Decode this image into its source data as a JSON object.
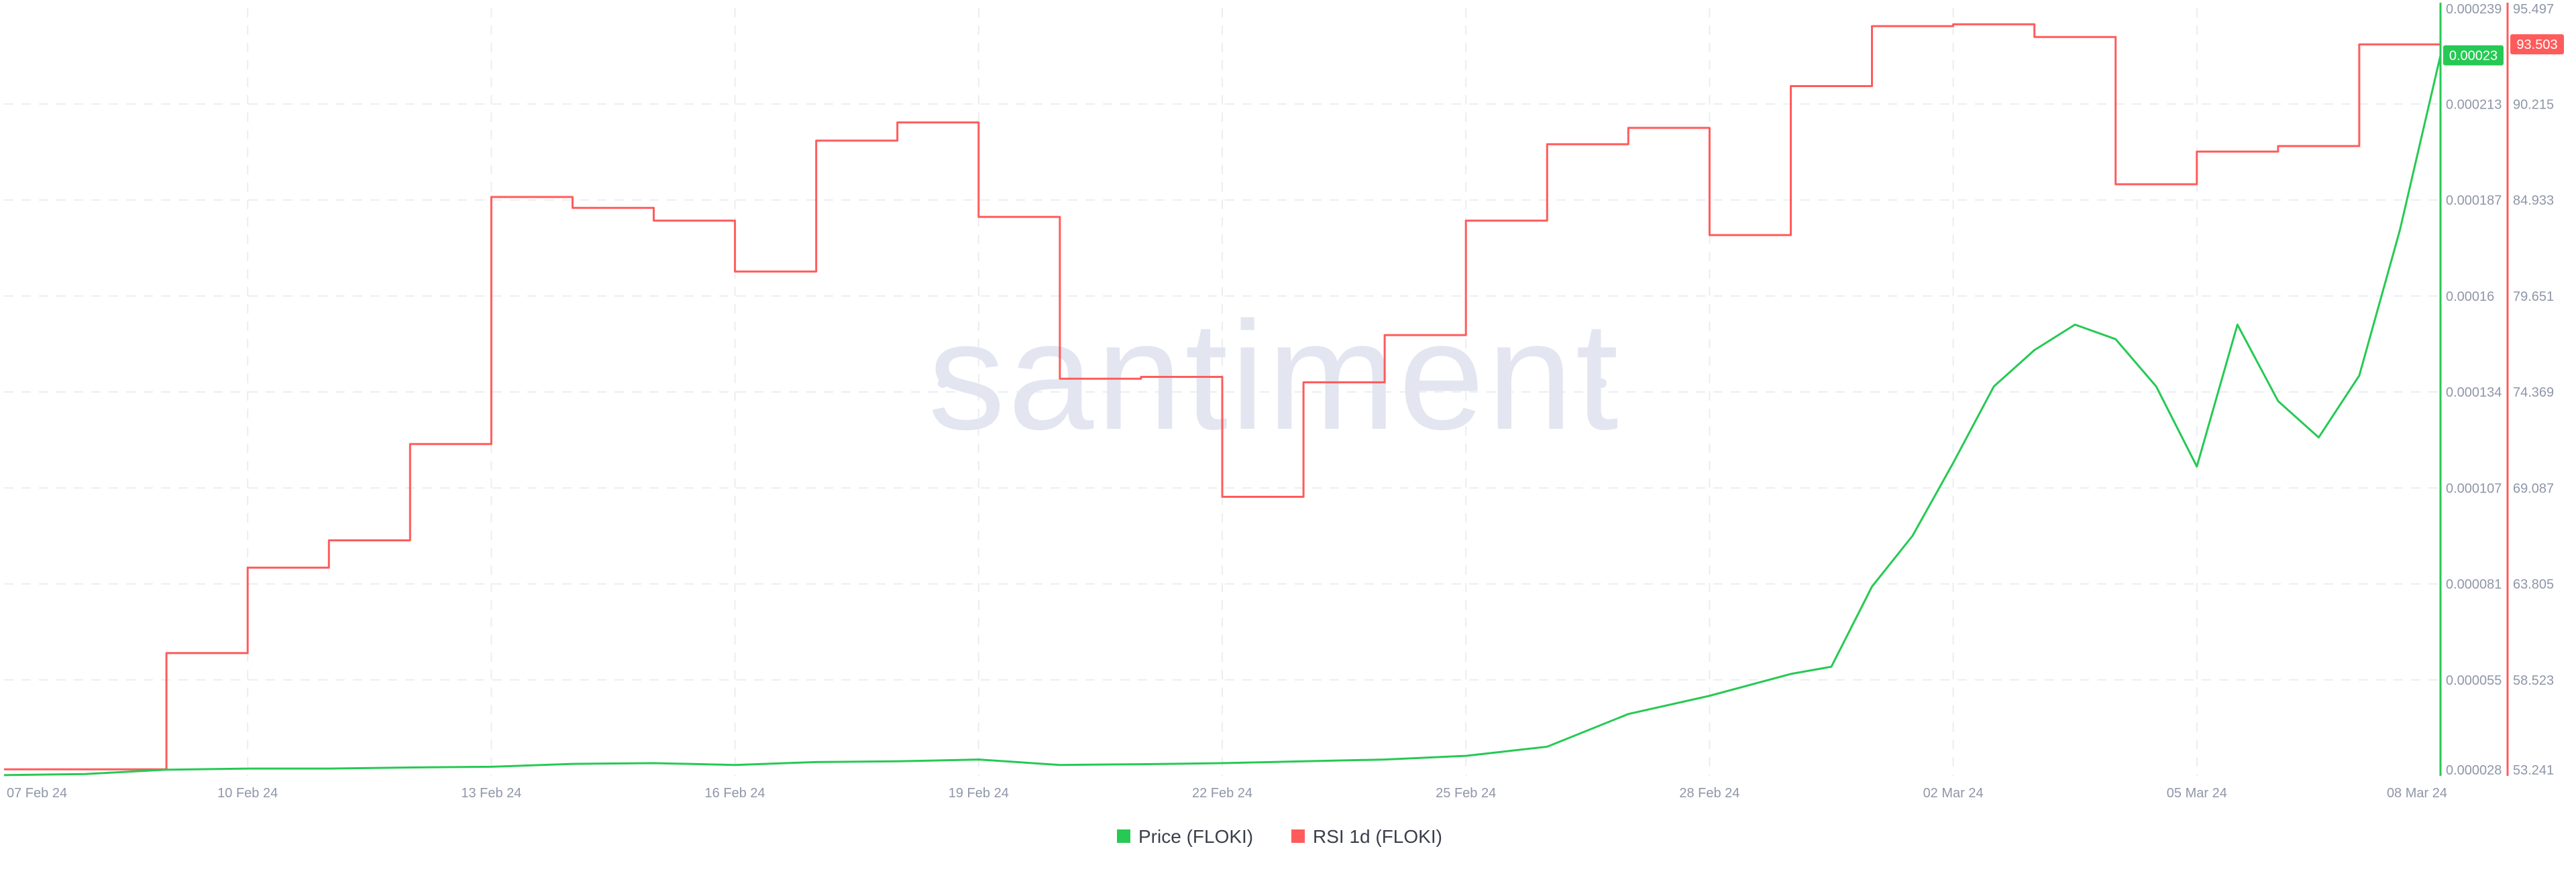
{
  "watermark": "santiment",
  "colors": {
    "price": "#26c953",
    "rsi": "#ff5b5b",
    "grid": "#ebedf2",
    "tick_text": "#8f96a8",
    "legend_text": "#3a3f4b"
  },
  "chart_data": {
    "type": "line",
    "title": "",
    "x_ticks": [
      "07 Feb 24",
      "10 Feb 24",
      "13 Feb 24",
      "16 Feb 24",
      "19 Feb 24",
      "22 Feb 24",
      "25 Feb 24",
      "28 Feb 24",
      "02 Mar 24",
      "05 Mar 24",
      "08 Mar 24"
    ],
    "xlim": [
      "2024-02-07",
      "2024-03-08"
    ],
    "y_axes": {
      "price": {
        "side": "right-inner",
        "ticks": [
          "0.000239",
          "0.000213",
          "0.000187",
          "0.00016",
          "0.000134",
          "0.000107",
          "0.000081",
          "0.000055",
          "0.000028"
        ],
        "range": [
          2.8e-05,
          0.000239
        ],
        "current_value_label": "0.00023"
      },
      "rsi": {
        "side": "right-outer",
        "ticks": [
          "95.497",
          "90.215",
          "84.933",
          "79.651",
          "74.369",
          "69.087",
          "63.805",
          "58.523",
          "53.241"
        ],
        "range": [
          53.241,
          95.497
        ],
        "current_value_label": "93.503"
      }
    },
    "legend": [
      {
        "name": "Price (FLOKI)",
        "color": "#26c953"
      },
      {
        "name": "RSI 1d (FLOKI)",
        "color": "#ff5b5b"
      }
    ],
    "legend_position": "bottom-center",
    "grid": true,
    "series": [
      {
        "name": "RSI 1d (FLOKI)",
        "axis": "rsi",
        "step": true,
        "x": [
          "2024-02-07",
          "2024-02-08",
          "2024-02-09",
          "2024-02-10",
          "2024-02-11",
          "2024-02-12",
          "2024-02-13",
          "2024-02-14",
          "2024-02-15",
          "2024-02-16",
          "2024-02-17",
          "2024-02-18",
          "2024-02-19",
          "2024-02-20",
          "2024-02-21",
          "2024-02-22",
          "2024-02-23",
          "2024-02-24",
          "2024-02-25",
          "2024-02-26",
          "2024-02-27",
          "2024-02-28",
          "2024-02-29",
          "2024-03-01",
          "2024-03-02",
          "2024-03-03",
          "2024-03-04",
          "2024-03-05",
          "2024-03-06",
          "2024-03-07",
          "2024-03-08"
        ],
        "values": [
          53.6,
          53.6,
          60.0,
          64.7,
          66.2,
          71.5,
          85.1,
          84.5,
          83.8,
          81.0,
          88.2,
          89.2,
          84.0,
          75.1,
          75.2,
          68.6,
          74.9,
          77.5,
          83.8,
          88.0,
          88.9,
          83.0,
          91.2,
          94.5,
          94.6,
          93.9,
          85.8,
          87.6,
          87.9,
          93.5,
          93.5
        ]
      },
      {
        "name": "Price (FLOKI)",
        "axis": "price",
        "step": false,
        "x": [
          "2024-02-07",
          "2024-02-08",
          "2024-02-09",
          "2024-02-10",
          "2024-02-11",
          "2024-02-12",
          "2024-02-13",
          "2024-02-14",
          "2024-02-15",
          "2024-02-16",
          "2024-02-17",
          "2024-02-18",
          "2024-02-19",
          "2024-02-20",
          "2024-02-21",
          "2024-02-22",
          "2024-02-23",
          "2024-02-24",
          "2024-02-25",
          "2024-02-26",
          "2024-02-27",
          "2024-02-28",
          "2024-02-29",
          "2024-02-29T12:00",
          "2024-03-01",
          "2024-03-01T12:00",
          "2024-03-02",
          "2024-03-02T12:00",
          "2024-03-03",
          "2024-03-03T12:00",
          "2024-03-04",
          "2024-03-04T12:00",
          "2024-03-05",
          "2024-03-05T12:00",
          "2024-03-06",
          "2024-03-06T12:00",
          "2024-03-07",
          "2024-03-07T12:00",
          "2024-03-08"
        ],
        "values": [
          2.82e-05,
          2.85e-05,
          2.97e-05,
          3e-05,
          3e-05,
          3.03e-05,
          3.05e-05,
          3.13e-05,
          3.15e-05,
          3.1e-05,
          3.18e-05,
          3.2e-05,
          3.25e-05,
          3.1e-05,
          3.12e-05,
          3.15e-05,
          3.2e-05,
          3.25e-05,
          3.35e-05,
          3.6e-05,
          4.5e-05,
          5e-05,
          5.6e-05,
          5.8e-05,
          8e-05,
          9.4e-05,
          0.000114,
          0.000135,
          0.000145,
          0.000152,
          0.000148,
          0.000135,
          0.000113,
          0.000152,
          0.000131,
          0.000121,
          0.000138,
          0.000178,
          0.000226
        ]
      }
    ]
  }
}
